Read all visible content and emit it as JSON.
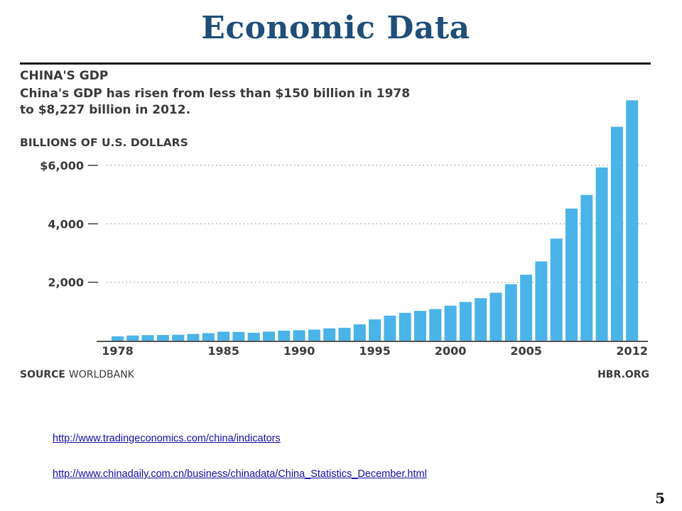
{
  "slide": {
    "title": "Economic Data",
    "slide_number": "5",
    "links": [
      "http://www.tradingeconomics.com/china/indicators",
      "http://www.chinadaily.com.cn/business/chinadata/China_Statistics_December.html"
    ]
  },
  "chart_data": {
    "type": "bar",
    "title": "CHINA'S GDP",
    "subtitle_lines": [
      "China's GDP has risen from less than $150 billion in 1978",
      "to $8,227 billion in 2012."
    ],
    "ylabel": "BILLIONS OF U.S. DOLLARS",
    "ylim": [
      0,
      8600
    ],
    "yticks": [
      2000,
      4000,
      6000
    ],
    "ytick_labels": [
      "2,000",
      "4,000",
      "$6,000"
    ],
    "grid": "horizontal-dotted",
    "x": [
      1978,
      1979,
      1980,
      1981,
      1982,
      1983,
      1984,
      1985,
      1986,
      1987,
      1988,
      1989,
      1990,
      1991,
      1992,
      1993,
      1994,
      1995,
      1996,
      1997,
      1998,
      1999,
      2000,
      2001,
      2002,
      2003,
      2004,
      2005,
      2006,
      2007,
      2008,
      2009,
      2010,
      2011,
      2012
    ],
    "values": [
      148,
      176,
      189,
      194,
      203,
      228,
      257,
      307,
      298,
      270,
      309,
      343,
      357,
      379,
      422,
      440,
      559,
      728,
      856,
      953,
      1019,
      1083,
      1198,
      1325,
      1454,
      1641,
      1932,
      2257,
      2713,
      3494,
      4522,
      4990,
      5930,
      7322,
      8227
    ],
    "xtick_labels": [
      "1978",
      "1985",
      "1990",
      "1995",
      "2000",
      "2005",
      "2012"
    ],
    "bar_color": "#4ab3e8",
    "source_label": "SOURCE",
    "source_value": "WORLDBANK",
    "credit": "HBR.ORG"
  }
}
